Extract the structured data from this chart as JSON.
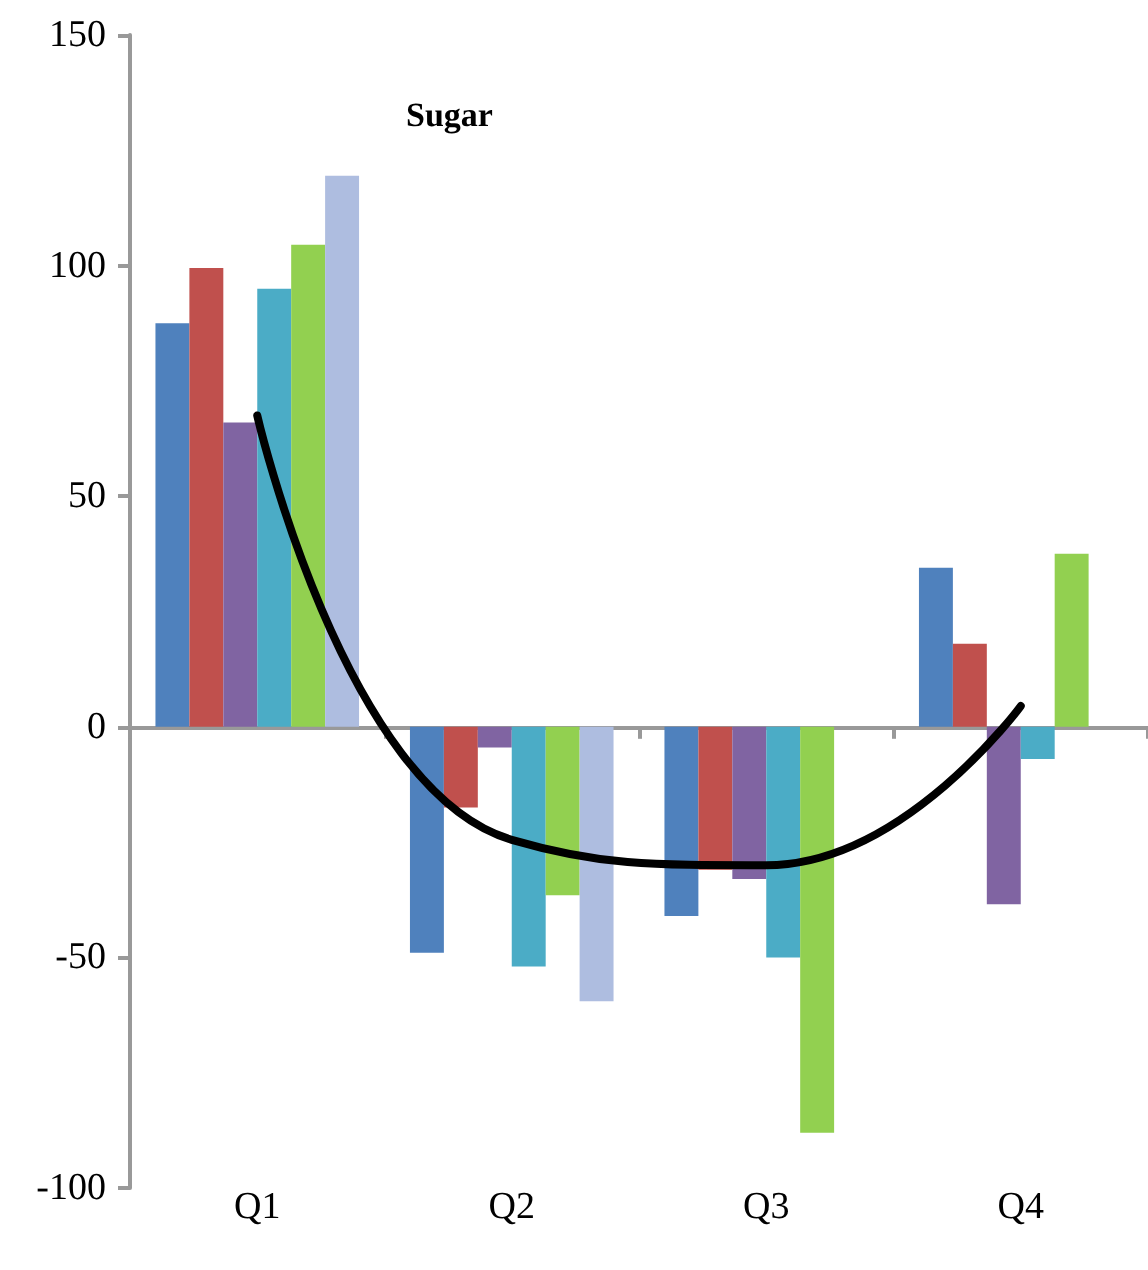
{
  "chart_data": {
    "type": "bar",
    "title": "Sugar",
    "categories": [
      "Q1",
      "Q2",
      "Q3",
      "Q4"
    ],
    "series": [
      {
        "color": "#4f81bd",
        "values": [
          87.5,
          -49,
          -41,
          34.5
        ]
      },
      {
        "color": "#c0504d",
        "values": [
          99.5,
          -17.5,
          -31,
          18
        ]
      },
      {
        "color": "#8064a2",
        "values": [
          66,
          -4.5,
          -33,
          -38.5
        ]
      },
      {
        "color": "#4bacc6",
        "values": [
          95,
          -52,
          -50,
          -7
        ]
      },
      {
        "color": "#92d050",
        "values": [
          104.5,
          -36.5,
          -88,
          37.5
        ]
      },
      {
        "color": "#aebde0",
        "values": [
          119.5,
          -59.5,
          null,
          null
        ]
      },
      {
        "type": "line",
        "color": "#000000",
        "values": [
          67.5,
          -24.5,
          -30,
          4.5
        ]
      }
    ],
    "ylim": [
      -100,
      150
    ],
    "yticks": [
      -100,
      -50,
      0,
      50,
      100,
      150
    ],
    "marker": "none"
  }
}
